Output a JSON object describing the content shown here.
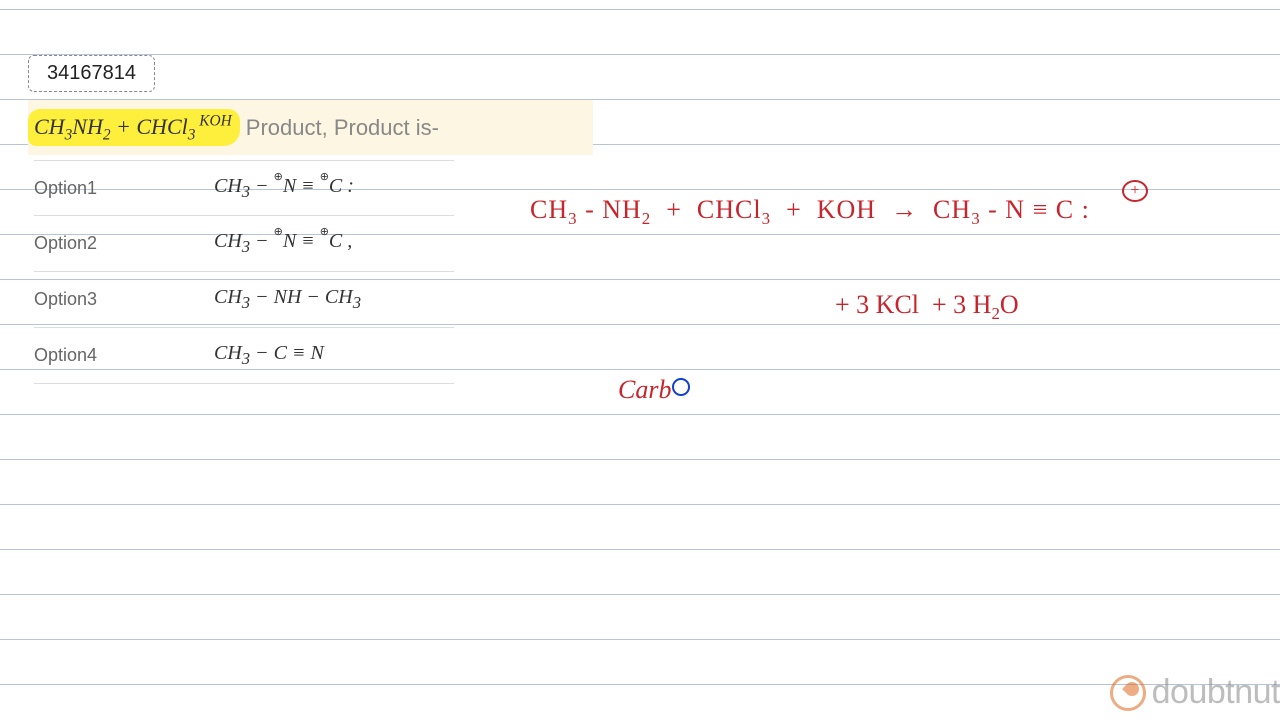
{
  "question_id": "34167814",
  "question": {
    "formula_html": "CH<sub>3</sub>NH<sub>2</sub> + CHCl<sub>3</sub><sup> KOH</sup>",
    "tail_text": "Product, Product is-"
  },
  "options": [
    {
      "label": "Option1",
      "html": "CH<sub>3</sub> − <span class='oplus'>⊕</span>N ≡ <span class='oplus'>⊕</span>C :"
    },
    {
      "label": "Option2",
      "html": "CH<sub>3</sub> − <span class='oplus'>⊕</span>N ≡ <span class='oplus'>⊕</span>C ,"
    },
    {
      "label": "Option3",
      "html": "CH<sub>3</sub> − NH − CH<sub>3</sub>"
    },
    {
      "label": "Option4",
      "html": "CH<sub>3</sub> − C ≡ N"
    }
  ],
  "handwriting": {
    "line1_html": "CH<span class='hw-sub'>3</span> - NH<span class='hw-sub'>2</span> &nbsp;+&nbsp; CHCl<span class='hw-sub'>3</span> &nbsp;+&nbsp; KOH &nbsp;→&nbsp; CH<span class='hw-sub'>3</span> - N ≡ C :",
    "line2_html": "+ 3 KCl &nbsp;+ 3 H<span class='hw-sub'>2</span>O",
    "line3_text": "Carb",
    "circled_plus": "+"
  },
  "watermark": {
    "text": "doubtnut"
  },
  "colors": {
    "highlight": "#ffef3d",
    "question_bg": "#fdf6e3",
    "handwriting": "#c8242b",
    "cursor": "#1040d0",
    "watermark_icon": "#e06a1b",
    "notebook_line": "#b8c5d6"
  }
}
